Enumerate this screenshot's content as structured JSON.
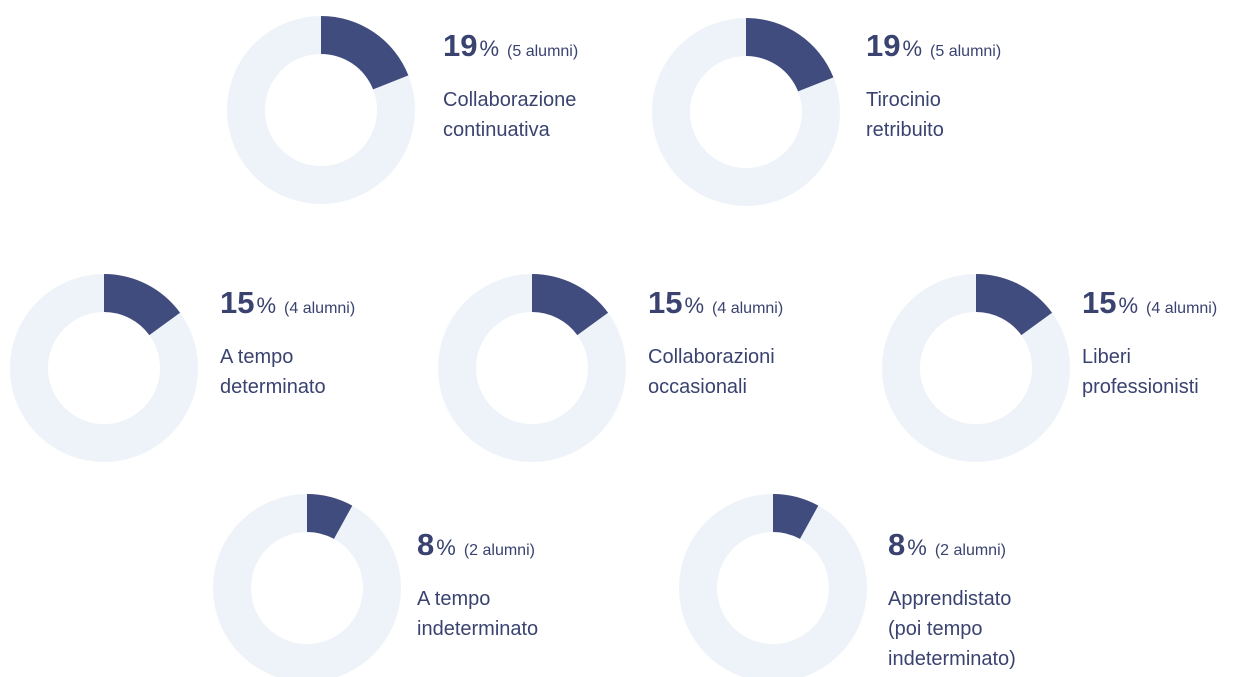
{
  "chart_data": [
    {
      "type": "donut",
      "value": 19,
      "unit": "%",
      "count_label": "(5 alumni)",
      "label_lines": [
        "Collaborazione",
        "continuativa"
      ],
      "color": "#414c7e",
      "track_color": "#edf3f8"
    },
    {
      "type": "donut",
      "value": 19,
      "unit": "%",
      "count_label": "(5 alumni)",
      "label_lines": [
        "Tirocinio",
        "retribuito"
      ],
      "color": "#414c7e",
      "track_color": "#edf3f8"
    },
    {
      "type": "donut",
      "value": 15,
      "unit": "%",
      "count_label": "(4 alumni)",
      "label_lines": [
        "A tempo",
        "determinato"
      ],
      "color": "#414c7e",
      "track_color": "#edf3f8"
    },
    {
      "type": "donut",
      "value": 15,
      "unit": "%",
      "count_label": "(4 alumni)",
      "label_lines": [
        "Collaborazioni",
        "occasionali"
      ],
      "color": "#414c7e",
      "track_color": "#edf3f8"
    },
    {
      "type": "donut",
      "value": 15,
      "unit": "%",
      "count_label": "(4 alumni)",
      "label_lines": [
        "Liberi",
        "professionisti"
      ],
      "color": "#414c7e",
      "track_color": "#edf3f8"
    },
    {
      "type": "donut",
      "value": 8,
      "unit": "%",
      "count_label": "(2 alumni)",
      "label_lines": [
        "A tempo",
        "indeterminato"
      ],
      "color": "#414c7e",
      "track_color": "#edf3f8"
    },
    {
      "type": "donut",
      "value": 8,
      "unit": "%",
      "count_label": "(2 alumni)",
      "label_lines": [
        "Apprendistato",
        "(poi tempo",
        "indeterminato)"
      ],
      "color": "#414c7e",
      "track_color": "#edf3f8"
    }
  ]
}
